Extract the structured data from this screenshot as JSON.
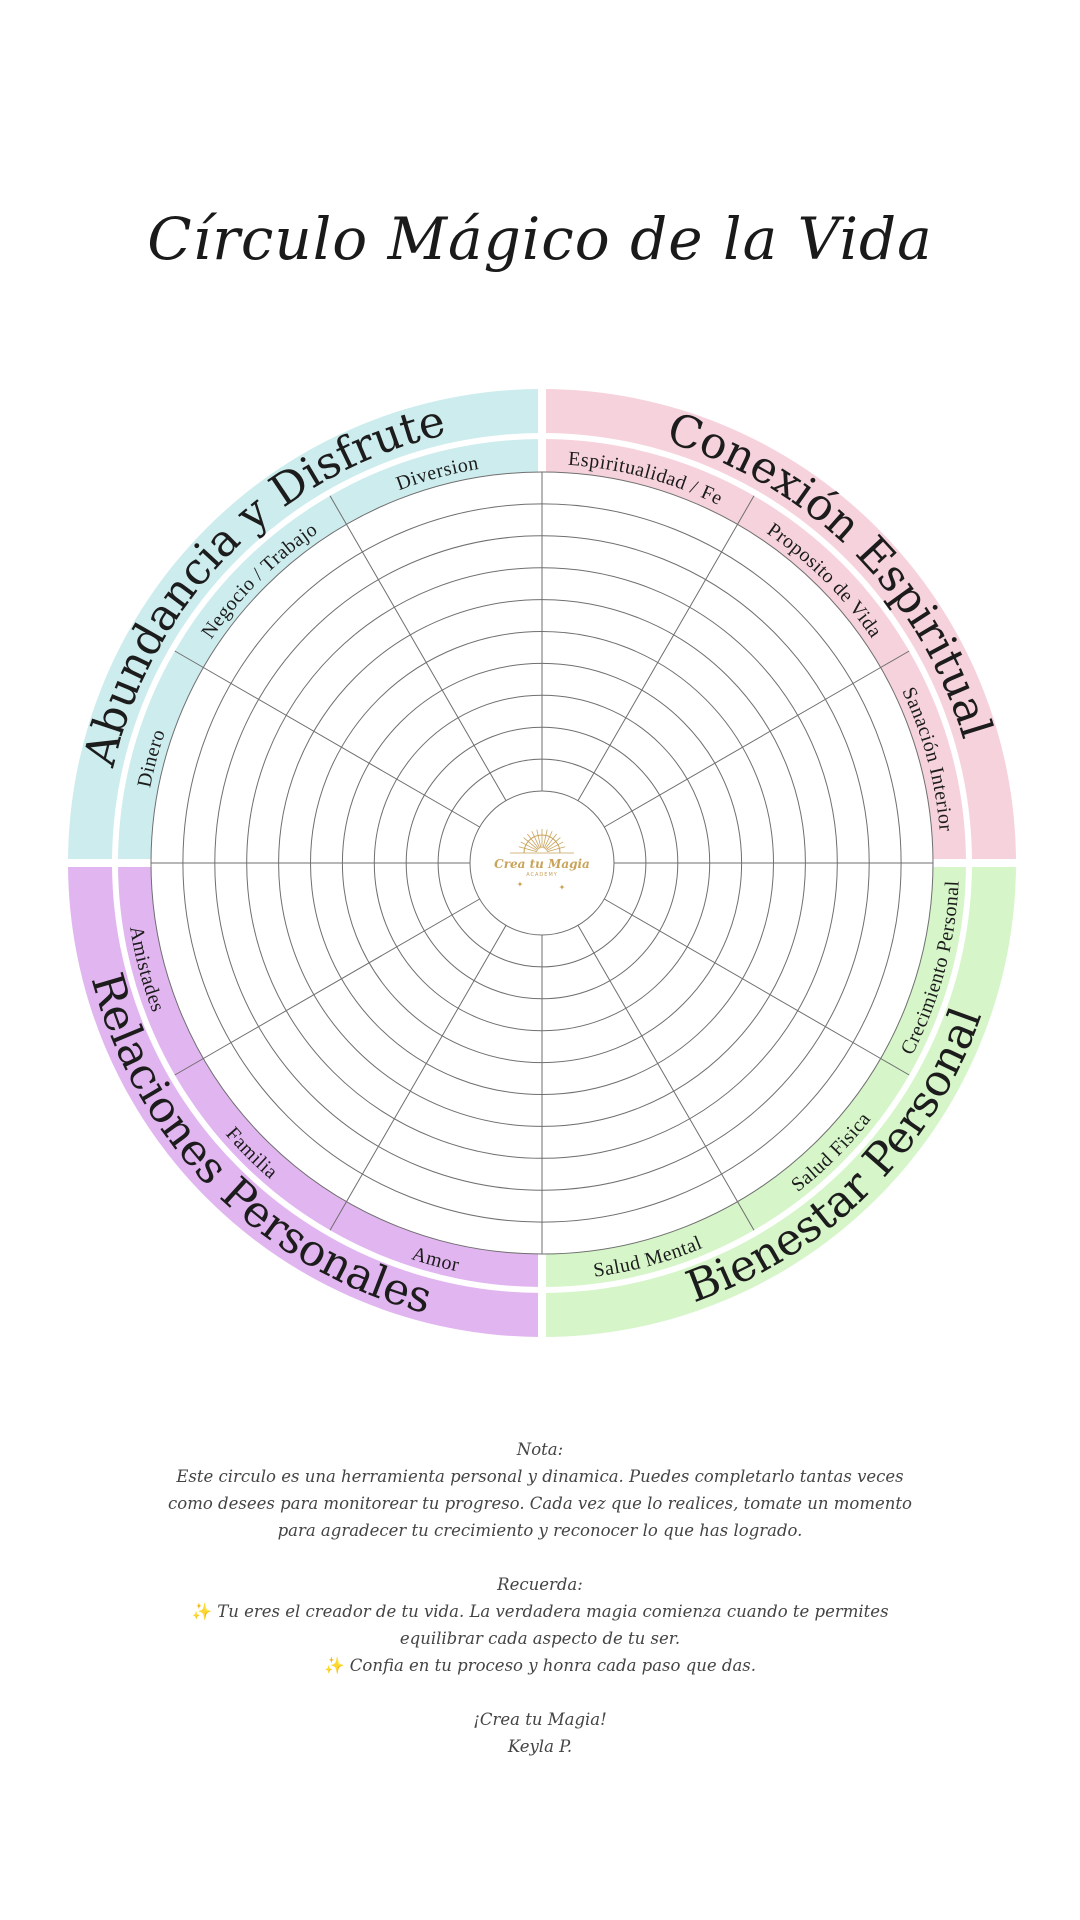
{
  "title": "Círculo Mágico de la Vida",
  "colors": {
    "abundancia": "#cdecee",
    "conexion": "#f6d3dc",
    "bienestar": "#d6f5c9",
    "relaciones": "#e1b5ef",
    "grid_line": "#6f6f6f",
    "logo": "#c9a35a",
    "sparkle": "#f2b02e"
  },
  "areas": [
    {
      "key": "conexion",
      "title": "Conexión Espiritual",
      "subs": [
        "Espiritualidad / Fe",
        "Proposito de Vida",
        "Sanación Interior"
      ]
    },
    {
      "key": "bienestar",
      "title": "Bienestar Personal",
      "subs": [
        "Crecimiento Personal",
        "Salud Fisica",
        "Salud Mental"
      ]
    },
    {
      "key": "relaciones",
      "title": "Relaciones Personales",
      "subs": [
        "Amor",
        "Familia",
        "Amistades"
      ]
    },
    {
      "key": "abundancia",
      "title": "Abundancia y Disfrute",
      "subs": [
        "Dinero",
        "Negocio / Trabajo",
        "Diversion"
      ]
    }
  ],
  "wheel": {
    "rings": 10,
    "segments": 12
  },
  "logo": {
    "name": "Crea tu Magia",
    "subtitle": "ACADEMY",
    "icon": "sun-rays-icon"
  },
  "note": {
    "heading": "Nota:",
    "line1": "Este circulo es una herramienta personal y dinamica. Puedes completarlo tantas veces",
    "line2": "como desees para monitorear tu progreso. Cada vez que lo realices, tomate un momento",
    "line3": "para agradecer tu crecimiento y reconocer lo que has logrado.",
    "remember_heading": "Recuerda:",
    "sparkle_icon": "sparkles-icon",
    "remember1a": "Tu eres el creador de tu vida. La verdadera magia comienza cuando te permites",
    "remember1b": "equilibrar cada aspecto de tu ser.",
    "remember2": "Confia en tu proceso y honra cada paso que das.",
    "closing": "¡Crea tu Magia!",
    "signature": "Keyla P."
  }
}
